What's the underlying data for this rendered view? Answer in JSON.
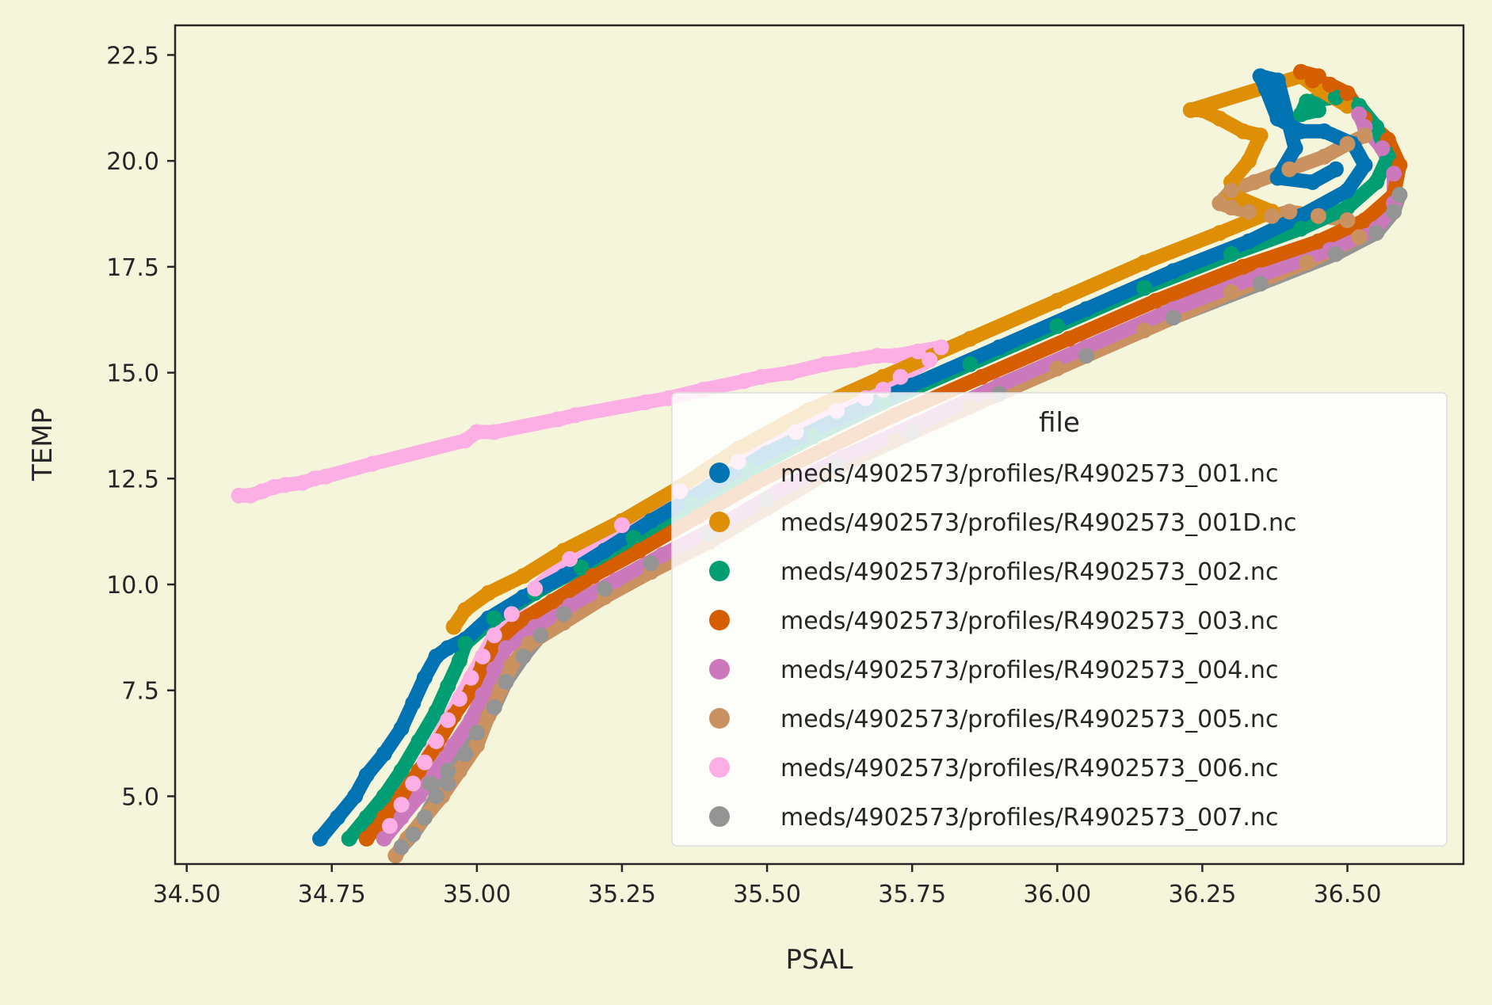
{
  "chart_data": {
    "type": "scatter",
    "title": "",
    "xlabel": "PSAL",
    "ylabel": "TEMP",
    "xlim": [
      34.48,
      36.7
    ],
    "ylim": [
      3.4,
      23.2
    ],
    "x_ticks": [
      34.5,
      34.75,
      35.0,
      35.25,
      35.5,
      35.75,
      36.0,
      36.25,
      36.5
    ],
    "x_tick_labels": [
      "34.50",
      "34.75",
      "35.00",
      "35.25",
      "35.50",
      "35.75",
      "36.00",
      "36.25",
      "36.50"
    ],
    "y_ticks": [
      5.0,
      7.5,
      10.0,
      12.5,
      15.0,
      17.5,
      20.0,
      22.5
    ],
    "y_tick_labels": [
      "5.0",
      "7.5",
      "10.0",
      "12.5",
      "15.0",
      "17.5",
      "20.0",
      "22.5"
    ],
    "grid": false,
    "legend": {
      "title": "file",
      "placement": "lower-right"
    },
    "background": "#f5f5dc",
    "series": [
      {
        "name": "meds/4902573/profiles/R4902573_001.nc",
        "color": "#0173b2",
        "points": [
          [
            34.73,
            4.0
          ],
          [
            34.76,
            4.5
          ],
          [
            34.79,
            5.0
          ],
          [
            34.81,
            5.5
          ],
          [
            34.84,
            6.0
          ],
          [
            34.87,
            6.6
          ],
          [
            34.89,
            7.2
          ],
          [
            34.91,
            7.8
          ],
          [
            34.93,
            8.3
          ],
          [
            34.95,
            8.5
          ],
          [
            34.98,
            8.7
          ],
          [
            35.02,
            9.2
          ],
          [
            35.08,
            9.7
          ],
          [
            35.15,
            10.2
          ],
          [
            35.22,
            10.8
          ],
          [
            35.3,
            11.5
          ],
          [
            35.4,
            12.3
          ],
          [
            35.5,
            13.1
          ],
          [
            35.62,
            13.9
          ],
          [
            35.75,
            14.7
          ],
          [
            35.9,
            15.6
          ],
          [
            36.05,
            16.5
          ],
          [
            36.2,
            17.4
          ],
          [
            36.33,
            18.1
          ],
          [
            36.42,
            18.7
          ],
          [
            36.5,
            19.3
          ],
          [
            36.53,
            19.9
          ],
          [
            36.51,
            20.4
          ],
          [
            36.46,
            20.7
          ],
          [
            36.42,
            20.7
          ],
          [
            36.38,
            21.0
          ],
          [
            36.36,
            21.7
          ],
          [
            36.35,
            22.0
          ],
          [
            36.38,
            21.9
          ],
          [
            36.41,
            20.3
          ],
          [
            36.38,
            19.6
          ],
          [
            36.44,
            19.5
          ],
          [
            36.48,
            19.8
          ]
        ]
      },
      {
        "name": "meds/4902573/profiles/R4902573_001D.nc",
        "color": "#de8f05",
        "points": [
          [
            34.96,
            9.0
          ],
          [
            34.98,
            9.4
          ],
          [
            35.02,
            9.8
          ],
          [
            35.08,
            10.2
          ],
          [
            35.15,
            10.8
          ],
          [
            35.25,
            11.5
          ],
          [
            35.35,
            12.3
          ],
          [
            35.45,
            13.2
          ],
          [
            35.57,
            14.1
          ],
          [
            35.7,
            14.9
          ],
          [
            35.85,
            15.8
          ],
          [
            36.0,
            16.7
          ],
          [
            36.15,
            17.6
          ],
          [
            36.28,
            18.3
          ],
          [
            36.37,
            18.8
          ],
          [
            36.3,
            19.2
          ],
          [
            36.3,
            19.5
          ],
          [
            36.33,
            20.0
          ],
          [
            36.35,
            20.6
          ],
          [
            36.32,
            20.7
          ],
          [
            36.28,
            21.0
          ],
          [
            36.25,
            21.2
          ],
          [
            36.23,
            21.2
          ],
          [
            36.42,
            22.0
          ],
          [
            36.45,
            21.7
          ],
          [
            36.5,
            21.3
          ]
        ]
      },
      {
        "name": "meds/4902573/profiles/R4902573_002.nc",
        "color": "#029e73",
        "points": [
          [
            34.78,
            4.0
          ],
          [
            34.81,
            4.5
          ],
          [
            34.84,
            5.0
          ],
          [
            34.87,
            5.6
          ],
          [
            34.9,
            6.3
          ],
          [
            34.93,
            7.0
          ],
          [
            34.95,
            7.6
          ],
          [
            34.97,
            8.2
          ],
          [
            34.98,
            8.6
          ],
          [
            35.03,
            9.2
          ],
          [
            35.1,
            9.8
          ],
          [
            35.18,
            10.4
          ],
          [
            35.27,
            11.1
          ],
          [
            35.37,
            11.9
          ],
          [
            35.47,
            12.7
          ],
          [
            35.58,
            13.5
          ],
          [
            35.7,
            14.3
          ],
          [
            35.85,
            15.2
          ],
          [
            36.0,
            16.1
          ],
          [
            36.15,
            17.0
          ],
          [
            36.3,
            17.8
          ],
          [
            36.42,
            18.4
          ],
          [
            36.5,
            18.9
          ],
          [
            36.55,
            19.5
          ],
          [
            36.57,
            20.1
          ],
          [
            36.55,
            20.8
          ],
          [
            36.52,
            21.3
          ],
          [
            36.48,
            21.5
          ],
          [
            36.43,
            21.4
          ],
          [
            36.42,
            21.1
          ],
          [
            36.45,
            21.2
          ]
        ]
      },
      {
        "name": "meds/4902573/profiles/R4902573_003.nc",
        "color": "#d55e00",
        "points": [
          [
            34.81,
            4.0
          ],
          [
            34.84,
            4.5
          ],
          [
            34.87,
            5.0
          ],
          [
            34.9,
            5.6
          ],
          [
            34.93,
            6.2
          ],
          [
            34.96,
            6.9
          ],
          [
            34.99,
            7.5
          ],
          [
            35.01,
            8.1
          ],
          [
            35.03,
            8.6
          ],
          [
            35.07,
            9.1
          ],
          [
            35.13,
            9.6
          ],
          [
            35.2,
            10.2
          ],
          [
            35.28,
            10.8
          ],
          [
            35.38,
            11.6
          ],
          [
            35.48,
            12.4
          ],
          [
            35.6,
            13.2
          ],
          [
            35.72,
            14.0
          ],
          [
            35.87,
            14.9
          ],
          [
            36.02,
            15.8
          ],
          [
            36.17,
            16.7
          ],
          [
            36.32,
            17.5
          ],
          [
            36.45,
            18.1
          ],
          [
            36.53,
            18.6
          ],
          [
            36.58,
            19.2
          ],
          [
            36.59,
            19.9
          ],
          [
            36.57,
            20.5
          ],
          [
            36.53,
            21.0
          ],
          [
            36.5,
            21.6
          ],
          [
            36.47,
            21.8
          ],
          [
            36.44,
            21.9
          ],
          [
            36.42,
            22.1
          ],
          [
            36.45,
            22.0
          ]
        ]
      },
      {
        "name": "meds/4902573/profiles/R4902573_004.nc",
        "color": "#cc78bc",
        "points": [
          [
            34.84,
            4.0
          ],
          [
            34.87,
            4.5
          ],
          [
            34.9,
            5.0
          ],
          [
            34.93,
            5.6
          ],
          [
            34.96,
            6.2
          ],
          [
            34.99,
            6.8
          ],
          [
            35.01,
            7.4
          ],
          [
            35.03,
            8.0
          ],
          [
            35.05,
            8.5
          ],
          [
            35.1,
            9.0
          ],
          [
            35.16,
            9.5
          ],
          [
            35.24,
            10.1
          ],
          [
            35.32,
            10.7
          ],
          [
            35.42,
            11.4
          ],
          [
            35.52,
            12.2
          ],
          [
            35.63,
            13.0
          ],
          [
            35.76,
            13.8
          ],
          [
            35.9,
            14.7
          ],
          [
            36.05,
            15.6
          ],
          [
            36.2,
            16.5
          ],
          [
            36.35,
            17.3
          ],
          [
            36.47,
            17.9
          ],
          [
            36.55,
            18.4
          ],
          [
            36.58,
            19.0
          ],
          [
            36.58,
            19.7
          ],
          [
            36.56,
            20.3
          ],
          [
            36.53,
            20.8
          ],
          [
            36.52,
            21.1
          ]
        ]
      },
      {
        "name": "meds/4902573/profiles/R4902573_005.nc",
        "color": "#ca9161",
        "points": [
          [
            34.86,
            3.6
          ],
          [
            34.88,
            4.0
          ],
          [
            34.91,
            4.5
          ],
          [
            34.94,
            5.0
          ],
          [
            34.97,
            5.6
          ],
          [
            35.0,
            6.2
          ],
          [
            35.02,
            6.9
          ],
          [
            35.04,
            7.5
          ],
          [
            35.06,
            8.1
          ],
          [
            35.09,
            8.6
          ],
          [
            35.15,
            9.1
          ],
          [
            35.22,
            9.7
          ],
          [
            35.3,
            10.3
          ],
          [
            35.4,
            11.0
          ],
          [
            35.5,
            11.8
          ],
          [
            35.6,
            12.6
          ],
          [
            35.72,
            13.4
          ],
          [
            35.85,
            14.2
          ],
          [
            36.0,
            15.1
          ],
          [
            36.15,
            16.0
          ],
          [
            36.3,
            16.9
          ],
          [
            36.43,
            17.6
          ],
          [
            36.52,
            18.2
          ],
          [
            36.5,
            18.6
          ],
          [
            36.45,
            18.7
          ],
          [
            36.4,
            18.8
          ],
          [
            36.37,
            18.7
          ],
          [
            36.33,
            18.8
          ],
          [
            36.3,
            18.9
          ],
          [
            36.28,
            19.0
          ],
          [
            36.3,
            19.3
          ],
          [
            36.34,
            19.5
          ],
          [
            36.4,
            19.8
          ],
          [
            36.46,
            20.1
          ],
          [
            36.5,
            20.4
          ],
          [
            36.53,
            20.6
          ]
        ]
      },
      {
        "name": "meds/4902573/profiles/R4902573_006.nc",
        "color": "#fbafe4",
        "points": [
          [
            34.59,
            12.1
          ],
          [
            34.61,
            12.1
          ],
          [
            34.63,
            12.2
          ],
          [
            34.65,
            12.3
          ],
          [
            34.67,
            12.35
          ],
          [
            34.7,
            12.4
          ],
          [
            34.72,
            12.5
          ],
          [
            34.74,
            12.55
          ],
          [
            34.82,
            12.85
          ],
          [
            34.98,
            13.4
          ],
          [
            35.0,
            13.6
          ],
          [
            35.03,
            13.6
          ],
          [
            35.14,
            13.9
          ],
          [
            35.17,
            14.0
          ],
          [
            35.29,
            14.3
          ],
          [
            35.33,
            14.4
          ],
          [
            35.39,
            14.6
          ],
          [
            35.46,
            14.8
          ],
          [
            35.49,
            14.9
          ],
          [
            35.54,
            15.0
          ],
          [
            35.6,
            15.2
          ],
          [
            35.65,
            15.3
          ],
          [
            35.69,
            15.4
          ],
          [
            35.72,
            15.4
          ],
          [
            35.76,
            15.5
          ],
          [
            35.8,
            15.6
          ],
          [
            35.78,
            15.3
          ],
          [
            35.73,
            14.9
          ],
          [
            35.7,
            14.6
          ],
          [
            35.67,
            14.4
          ],
          [
            35.62,
            14.1
          ],
          [
            35.55,
            13.6
          ],
          [
            35.45,
            12.9
          ],
          [
            35.35,
            12.2
          ],
          [
            35.25,
            11.4
          ],
          [
            35.16,
            10.6
          ],
          [
            35.1,
            9.9
          ],
          [
            35.06,
            9.3
          ],
          [
            35.03,
            8.8
          ],
          [
            35.01,
            8.3
          ],
          [
            34.99,
            7.8
          ],
          [
            34.97,
            7.3
          ],
          [
            34.95,
            6.8
          ],
          [
            34.93,
            6.3
          ],
          [
            34.91,
            5.8
          ],
          [
            34.89,
            5.3
          ],
          [
            34.87,
            4.8
          ],
          [
            34.85,
            4.3
          ]
        ]
      },
      {
        "name": "meds/4902573/profiles/R4902573_007.nc",
        "color": "#949494",
        "points": [
          [
            34.87,
            3.8
          ],
          [
            34.89,
            4.1
          ],
          [
            34.91,
            4.5
          ],
          [
            34.93,
            5.0
          ],
          [
            34.95,
            5.3
          ],
          [
            34.92,
            5.3
          ],
          [
            34.95,
            5.6
          ],
          [
            34.98,
            6.0
          ],
          [
            35.0,
            6.5
          ],
          [
            35.03,
            7.1
          ],
          [
            35.05,
            7.7
          ],
          [
            35.08,
            8.3
          ],
          [
            35.11,
            8.8
          ],
          [
            35.15,
            9.3
          ],
          [
            35.22,
            9.9
          ],
          [
            35.3,
            10.5
          ],
          [
            35.4,
            11.2
          ],
          [
            35.5,
            12.0
          ],
          [
            35.62,
            12.8
          ],
          [
            35.75,
            13.6
          ],
          [
            35.9,
            14.5
          ],
          [
            36.05,
            15.4
          ],
          [
            36.2,
            16.3
          ],
          [
            36.35,
            17.1
          ],
          [
            36.48,
            17.8
          ],
          [
            36.55,
            18.3
          ],
          [
            36.58,
            18.8
          ],
          [
            36.59,
            19.2
          ]
        ]
      }
    ]
  }
}
